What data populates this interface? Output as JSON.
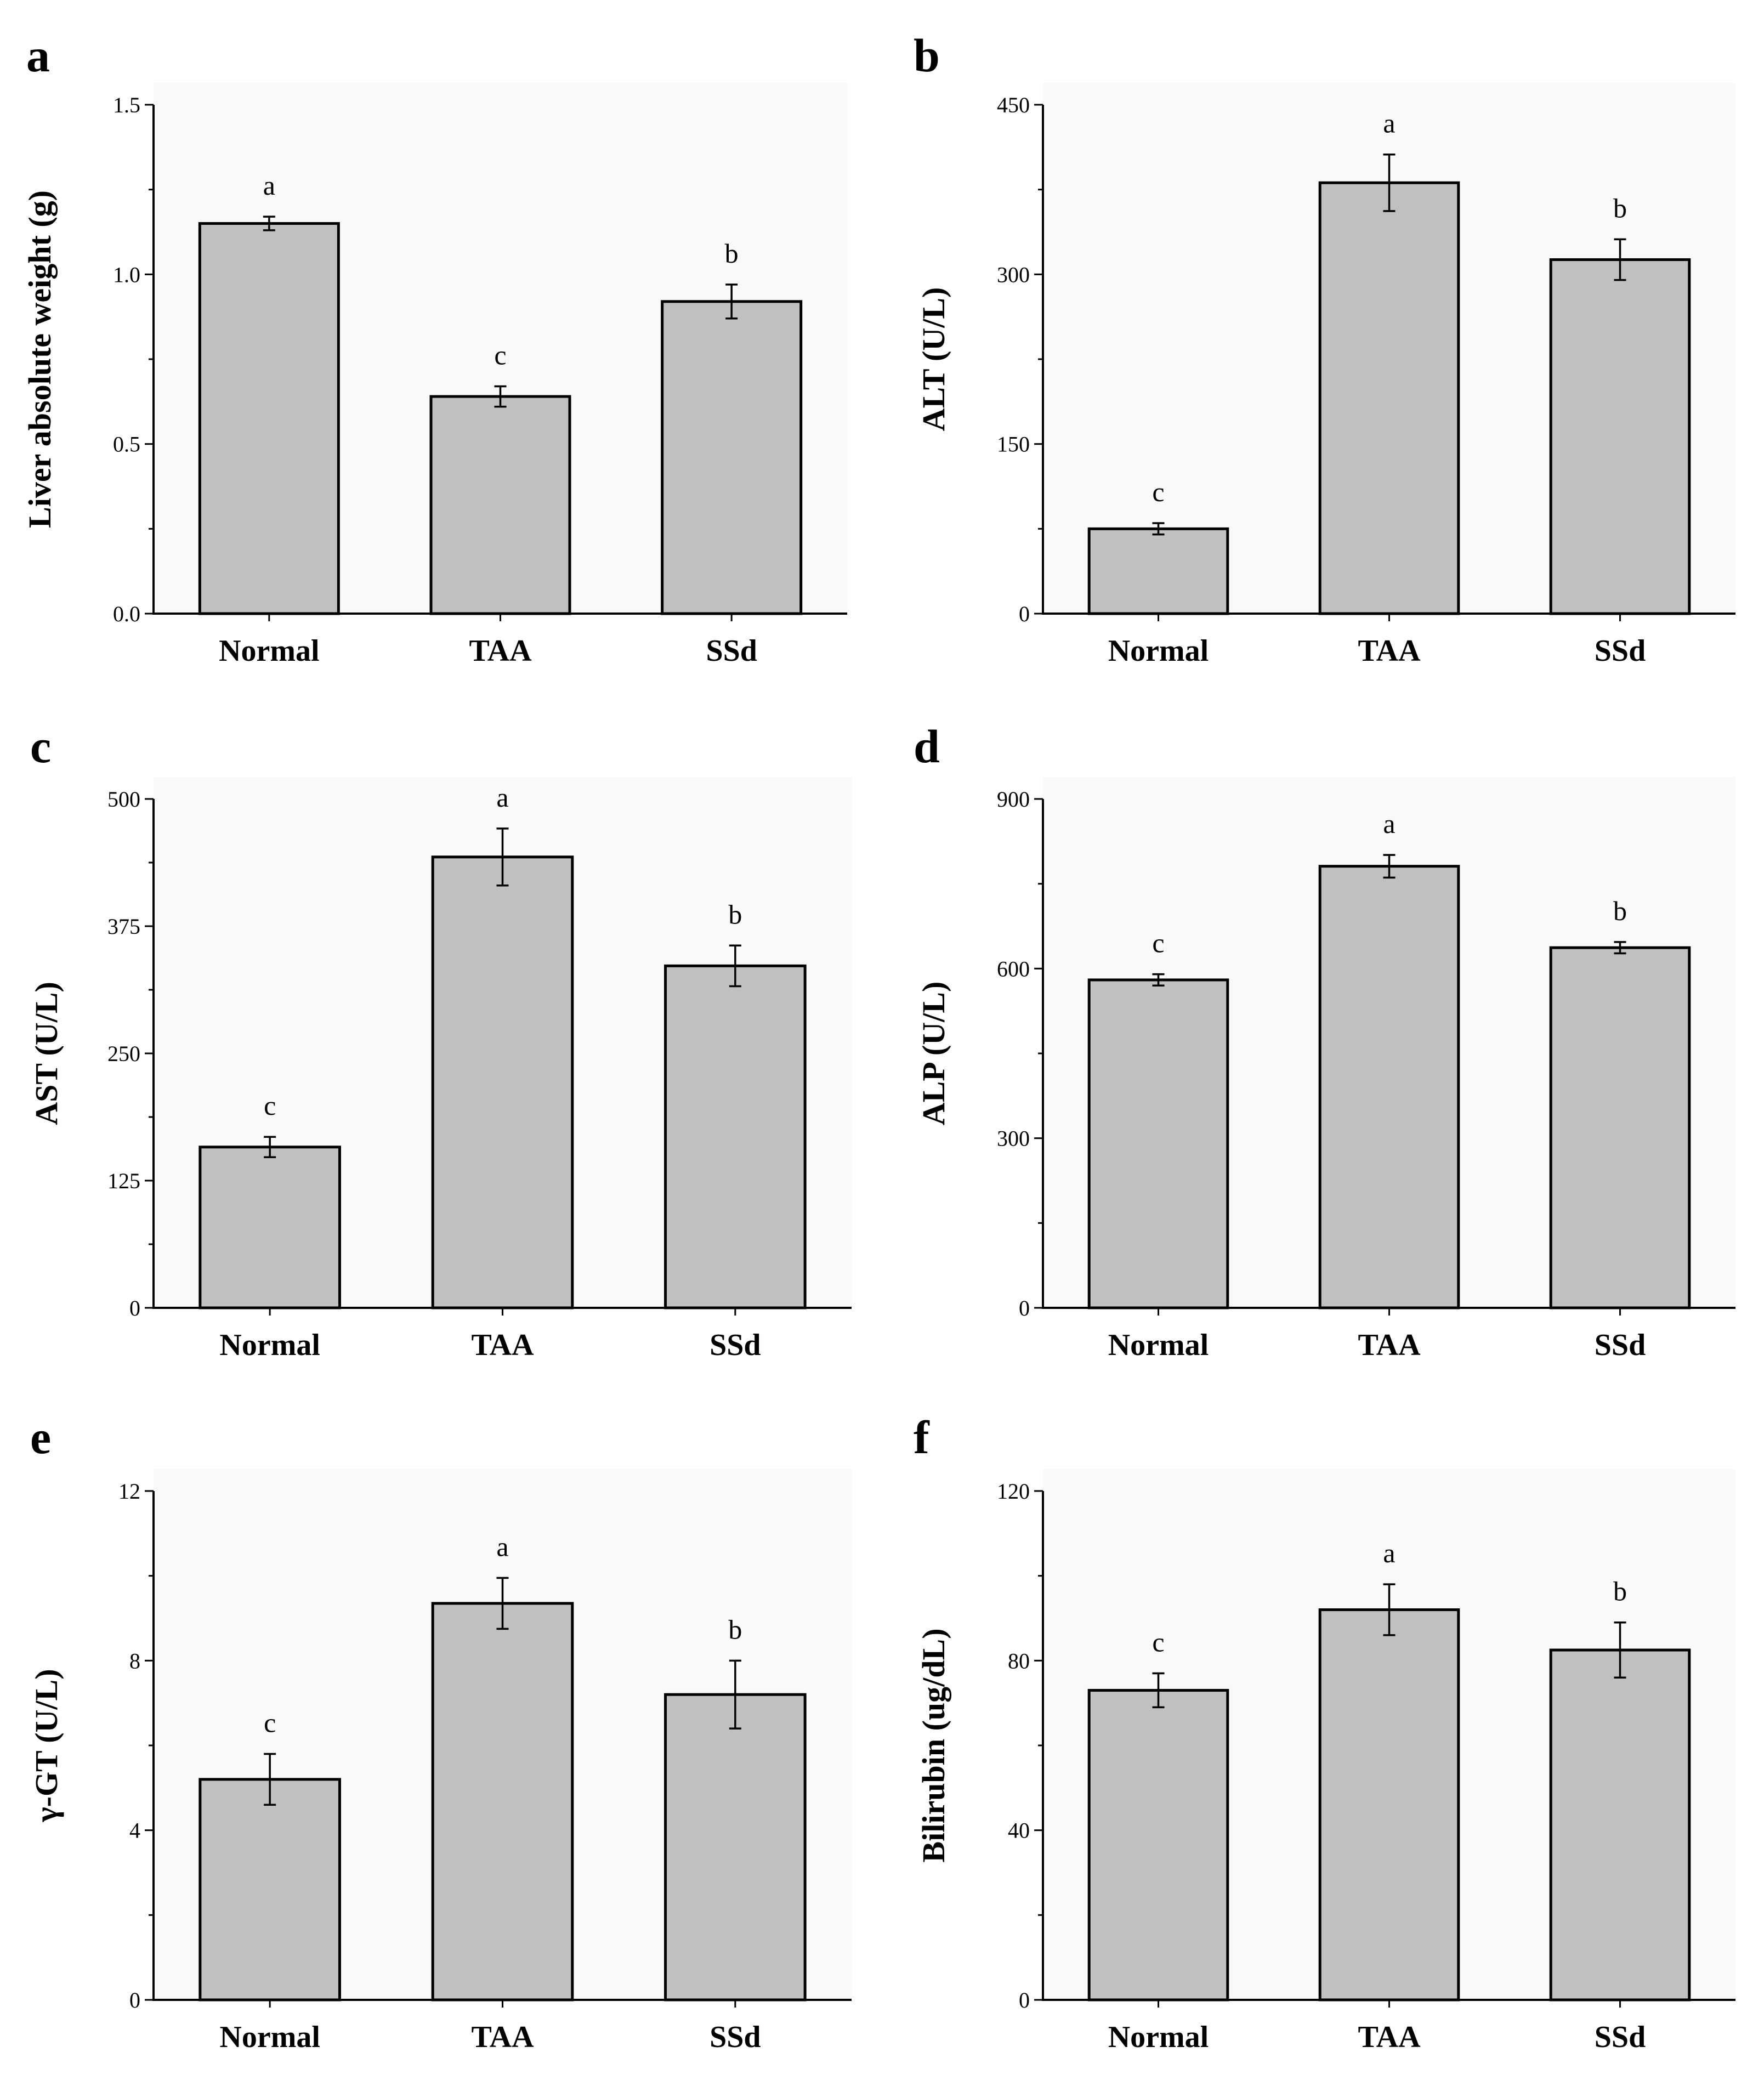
{
  "chart_data": [
    {
      "panel": "a",
      "type": "bar",
      "ylabel": "Liver absolute weight (g)",
      "categories": [
        "Normal",
        "TAA",
        "SSd"
      ],
      "values": [
        1.15,
        0.64,
        0.92
      ],
      "errors": [
        0.02,
        0.03,
        0.05
      ],
      "significance": [
        "a",
        "c",
        "b"
      ],
      "yticks": [
        "0.0",
        "0.5",
        "1.0",
        "1.5"
      ],
      "tick_values": [
        0,
        0.5,
        1.0,
        1.5
      ],
      "ylim": [
        0,
        1.5
      ]
    },
    {
      "panel": "b",
      "type": "bar",
      "ylabel": "ALT (U/L)",
      "categories": [
        "Normal",
        "TAA",
        "SSd"
      ],
      "values": [
        75,
        381,
        313
      ],
      "errors": [
        5,
        25,
        18
      ],
      "significance": [
        "c",
        "a",
        "b"
      ],
      "yticks": [
        "0",
        "150",
        "300",
        "450"
      ],
      "tick_values": [
        0,
        150,
        300,
        450
      ],
      "ylim": [
        0,
        450
      ]
    },
    {
      "panel": "c",
      "type": "bar",
      "ylabel": "AST (U/L)",
      "categories": [
        "Normal",
        "TAA",
        "SSd"
      ],
      "values": [
        158,
        443,
        336
      ],
      "errors": [
        10,
        28,
        20
      ],
      "significance": [
        "c",
        "a",
        "b"
      ],
      "yticks": [
        "0",
        "125",
        "250",
        "375",
        "500"
      ],
      "tick_values": [
        0,
        125,
        250,
        375,
        500
      ],
      "ylim": [
        0,
        500
      ]
    },
    {
      "panel": "d",
      "type": "bar",
      "ylabel": "ALP (U/L)",
      "categories": [
        "Normal",
        "TAA",
        "SSd"
      ],
      "values": [
        580,
        781,
        637
      ],
      "errors": [
        10,
        20,
        10
      ],
      "significance": [
        "c",
        "a",
        "b"
      ],
      "yticks": [
        "0",
        "300",
        "600",
        "900"
      ],
      "tick_values": [
        0,
        300,
        600,
        900
      ],
      "ylim": [
        0,
        900
      ]
    },
    {
      "panel": "e",
      "type": "bar",
      "ylabel": "γ-GT (U/L)",
      "categories": [
        "Normal",
        "TAA",
        "SSd"
      ],
      "values": [
        5.2,
        9.35,
        7.2
      ],
      "errors": [
        0.6,
        0.6,
        0.8
      ],
      "significance": [
        "c",
        "a",
        "b"
      ],
      "yticks": [
        "0",
        "4",
        "8",
        "12"
      ],
      "tick_values": [
        0,
        4,
        8,
        12
      ],
      "ylim": [
        0,
        12
      ]
    },
    {
      "panel": "f",
      "type": "bar",
      "ylabel": "Bilirubin (ug/dL)",
      "categories": [
        "Normal",
        "TAA",
        "SSd"
      ],
      "values": [
        73,
        92,
        82.5
      ],
      "errors": [
        4,
        6,
        6.5
      ],
      "significance": [
        "c",
        "a",
        "b"
      ],
      "yticks": [
        "0",
        "40",
        "80",
        "120"
      ],
      "tick_values": [
        0,
        40,
        80,
        120
      ],
      "ylim": [
        0,
        120
      ]
    }
  ]
}
